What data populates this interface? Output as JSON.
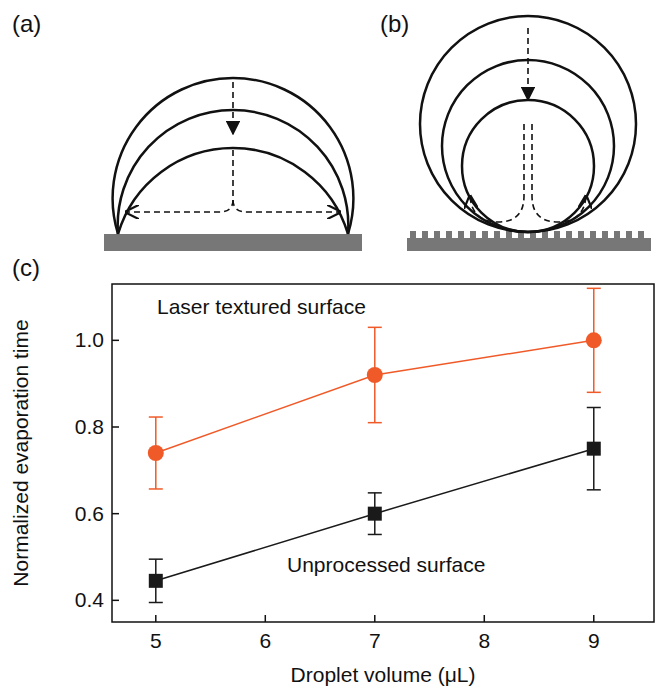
{
  "panel_labels": [
    "(a)",
    "(b)",
    "(c)"
  ],
  "chart_data": {
    "type": "line",
    "x_label": "Droplet volume (μL)",
    "y_label": "Normalized evaporation time",
    "x": [
      5,
      7,
      9
    ],
    "xlim": [
      4.6,
      9.55
    ],
    "xticks": [
      5,
      6,
      7,
      8,
      9
    ],
    "ylim": [
      0.35,
      1.13
    ],
    "yticks": [
      0.4,
      0.6,
      0.8,
      {
        "value": 1,
        "label": "1.0"
      }
    ],
    "marker": "circle",
    "series": [
      {
        "name": "Laser textured surface",
        "color": "#f05a28",
        "marker": "circle",
        "values": [
          0.74,
          0.92,
          1.0
        ],
        "errors": [
          0.083,
          0.11,
          0.12
        ]
      },
      {
        "name": "Unprocessed surface",
        "color": "#1a1a1a",
        "marker": "square",
        "values": [
          0.445,
          0.6,
          0.75
        ],
        "errors": [
          0.05,
          0.048,
          0.095
        ]
      }
    ]
  }
}
